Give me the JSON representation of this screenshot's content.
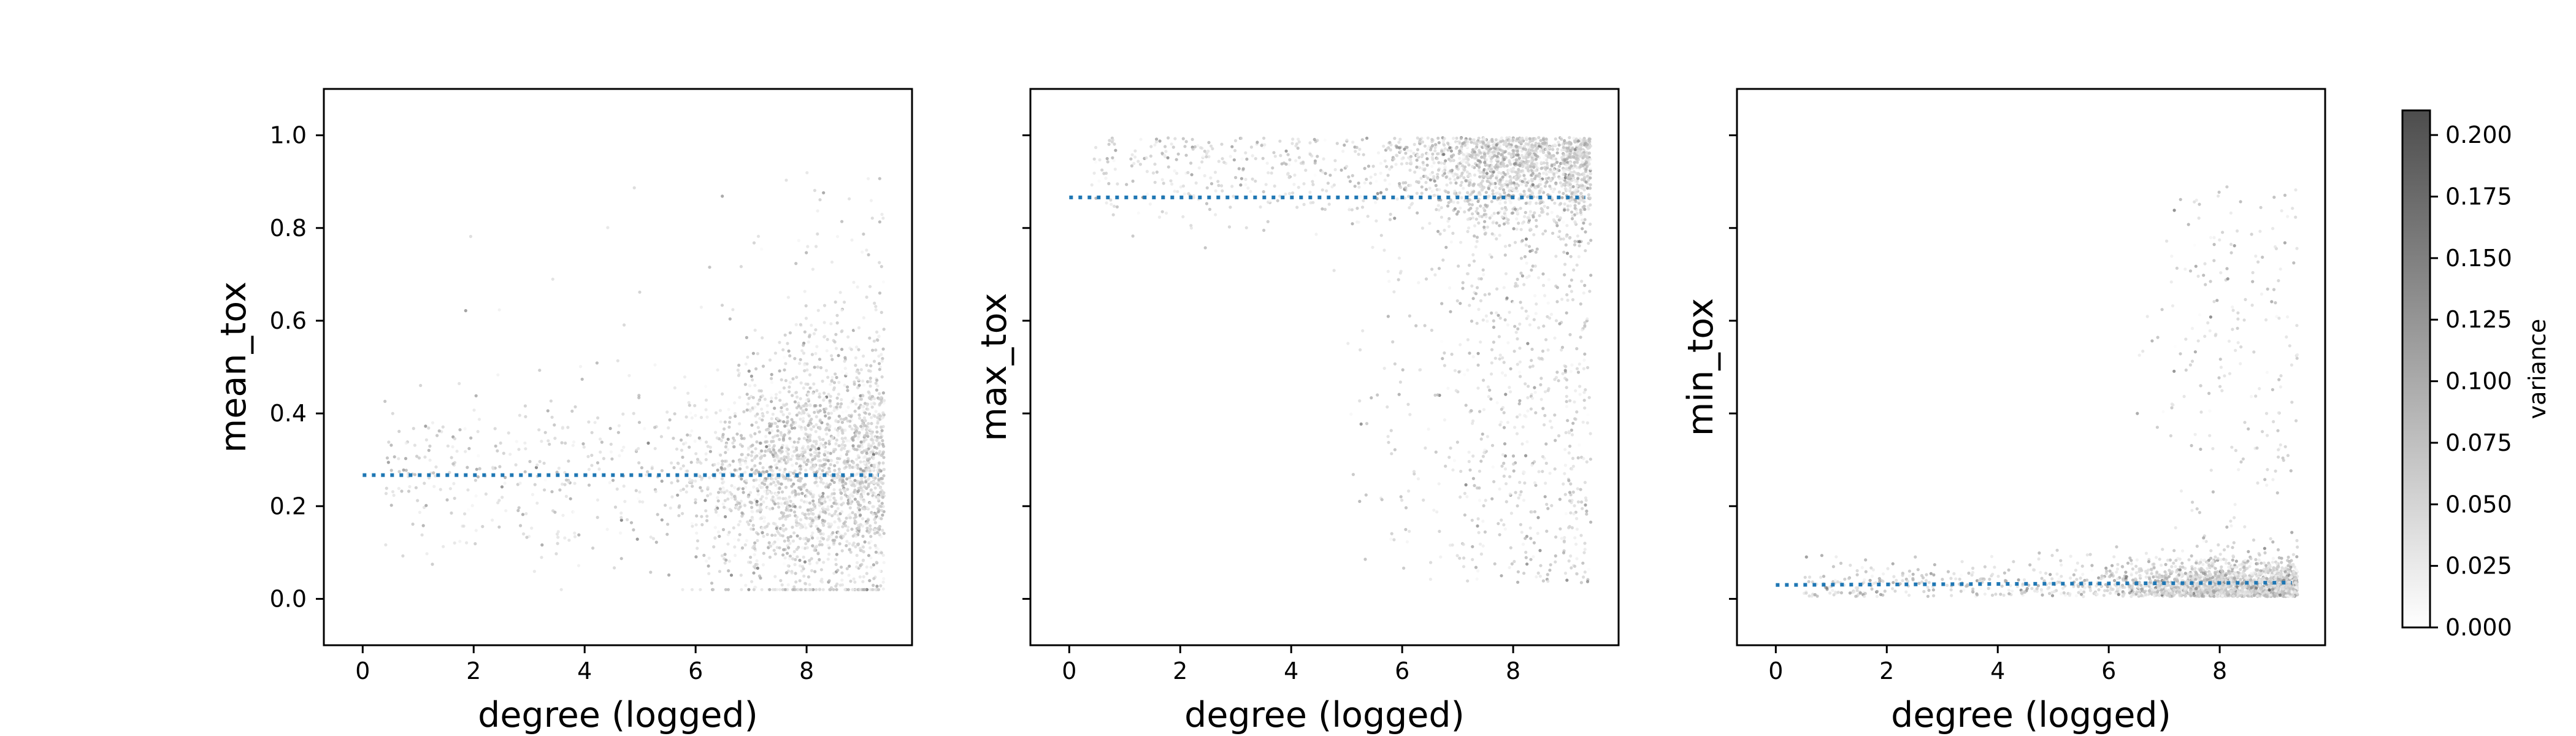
{
  "chart_data": [
    {
      "type": "scatter",
      "xlabel": "degree (logged)",
      "ylabel": "mean_tox",
      "xlim": [
        -0.7,
        9.9
      ],
      "ylim": [
        -0.1,
        1.1
      ],
      "xticks": [
        "0",
        "2",
        "4",
        "6",
        "8"
      ],
      "yticks": [
        "0.0",
        "0.2",
        "0.4",
        "0.6",
        "0.8",
        "1.0"
      ],
      "show_ytick_labels": true,
      "trend_line": {
        "style": "dotted",
        "color": "#1f77b4",
        "x": [
          0,
          9.3
        ],
        "y": [
          0.267,
          0.267
        ]
      },
      "point_cloud": {
        "x_center": 8.2,
        "y_center": 0.27,
        "y_spread": 0.11,
        "y_min": 0.02,
        "y_max": 0.96,
        "x_max": 9.4
      }
    },
    {
      "type": "scatter",
      "xlabel": "degree (logged)",
      "ylabel": "max_tox",
      "xlim": [
        -0.7,
        9.9
      ],
      "ylim": [
        -0.1,
        1.1
      ],
      "xticks": [
        "0",
        "2",
        "4",
        "6",
        "8"
      ],
      "yticks": [
        "0.0",
        "0.2",
        "0.4",
        "0.6",
        "0.8",
        "1.0"
      ],
      "show_ytick_labels": false,
      "trend_line": {
        "style": "dotted",
        "color": "#1f77b4",
        "x": [
          0,
          9.3
        ],
        "y": [
          0.866,
          0.866
        ]
      },
      "point_cloud": {
        "x_center": 8.2,
        "y_center": 0.92,
        "y_spread": 0.09,
        "y_min": 0.03,
        "y_max": 1.0,
        "x_max": 9.4
      }
    },
    {
      "type": "scatter",
      "xlabel": "degree (logged)",
      "ylabel": "min_tox",
      "xlim": [
        -0.7,
        9.9
      ],
      "ylim": [
        -0.1,
        1.1
      ],
      "xticks": [
        "0",
        "2",
        "4",
        "6",
        "8"
      ],
      "yticks": [
        "0.0",
        "0.2",
        "0.4",
        "0.6",
        "0.8",
        "1.0"
      ],
      "show_ytick_labels": false,
      "trend_line": {
        "style": "dotted",
        "color": "#1f77b4",
        "x": [
          0,
          9.3
        ],
        "y": [
          0.03,
          0.035
        ]
      },
      "point_cloud": {
        "x_center": 8.3,
        "y_center": 0.03,
        "y_spread": 0.05,
        "y_min": 0.0,
        "y_max": 0.94,
        "x_max": 9.4
      }
    }
  ],
  "colorbar": {
    "label": "variance",
    "range": [
      0.0,
      0.21
    ],
    "ticks": [
      "0.000",
      "0.025",
      "0.050",
      "0.075",
      "0.100",
      "0.125",
      "0.150",
      "0.175",
      "0.200"
    ],
    "colors": [
      "#ffffff",
      "#4d4d4d"
    ]
  }
}
